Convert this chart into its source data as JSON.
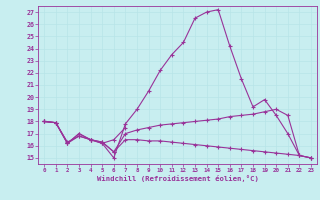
{
  "xlabel": "Windchill (Refroidissement éolien,°C)",
  "bg_color": "#c8eef0",
  "line_color": "#993399",
  "grid_color": "#b8e4e8",
  "xlim": [
    -0.5,
    23.5
  ],
  "ylim": [
    14.5,
    27.5
  ],
  "xticks": [
    0,
    1,
    2,
    3,
    4,
    5,
    6,
    7,
    8,
    9,
    10,
    11,
    12,
    13,
    14,
    15,
    16,
    17,
    18,
    19,
    20,
    21,
    22,
    23
  ],
  "yticks": [
    15,
    16,
    17,
    18,
    19,
    20,
    21,
    22,
    23,
    24,
    25,
    26,
    27
  ],
  "line1_x": [
    0,
    1,
    2,
    3,
    4,
    5,
    6,
    7,
    8,
    9,
    10,
    11,
    12,
    13,
    14,
    15,
    16,
    17,
    18,
    19,
    20,
    21,
    22,
    23
  ],
  "line1_y": [
    18.0,
    17.9,
    16.2,
    17.0,
    16.5,
    16.2,
    15.0,
    17.8,
    19.0,
    20.5,
    22.2,
    23.5,
    24.5,
    26.5,
    27.0,
    27.2,
    24.2,
    21.5,
    19.2,
    19.8,
    18.5,
    17.0,
    15.2,
    15.0
  ],
  "line2_x": [
    0,
    1,
    2,
    3,
    4,
    5,
    6,
    7,
    8,
    9,
    10,
    11,
    12,
    13,
    14,
    15,
    16,
    17,
    18,
    19,
    20,
    21,
    22,
    23
  ],
  "line2_y": [
    18.0,
    17.9,
    16.2,
    16.8,
    16.5,
    16.3,
    15.5,
    17.0,
    17.3,
    17.5,
    17.7,
    17.8,
    17.9,
    18.0,
    18.1,
    18.2,
    18.4,
    18.5,
    18.6,
    18.8,
    19.0,
    18.5,
    15.2,
    15.0
  ],
  "line3_x": [
    0,
    1,
    2,
    3,
    4,
    5,
    6,
    7,
    8,
    9,
    10,
    11,
    12,
    13,
    14,
    15,
    16,
    17,
    18,
    19,
    20,
    21,
    22,
    23
  ],
  "line3_y": [
    18.0,
    17.9,
    16.3,
    16.8,
    16.5,
    16.3,
    15.5,
    16.5,
    16.5,
    16.4,
    16.4,
    16.3,
    16.2,
    16.1,
    16.0,
    15.9,
    15.8,
    15.7,
    15.6,
    15.5,
    15.4,
    15.3,
    15.2,
    15.0
  ],
  "line4_x": [
    0,
    1,
    2,
    3,
    4,
    5,
    6,
    7
  ],
  "line4_y": [
    18.0,
    17.9,
    16.2,
    17.0,
    16.5,
    16.2,
    16.5,
    17.5
  ]
}
